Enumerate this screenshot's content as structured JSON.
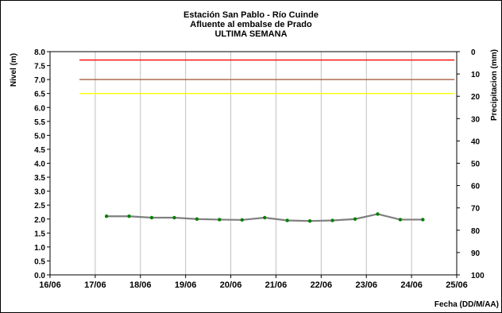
{
  "chart_data": {
    "type": "line",
    "title_lines": [
      "Estación San Pablo - Río Cuinde",
      "Afluente al embalse de Prado",
      "ULTIMA SEMANA"
    ],
    "xlabel": "Fecha (DD/M/AA)",
    "ylabel": "Nivel (m)",
    "y2label": "Precipitacion (mm)",
    "x_ticks": [
      "16/06",
      "17/06",
      "18/06",
      "19/06",
      "20/06",
      "21/06",
      "22/06",
      "23/06",
      "24/06",
      "25/06"
    ],
    "xlim_days": [
      16,
      25
    ],
    "ylim": [
      0.0,
      8.0
    ],
    "y_ticks": [
      "0.0",
      "0.5",
      "1.0",
      "1.5",
      "2.0",
      "2.5",
      "3.0",
      "3.5",
      "4.0",
      "4.5",
      "5.0",
      "5.5",
      "6.0",
      "6.5",
      "7.0",
      "7.5",
      "8.0"
    ],
    "y2lim": [
      0,
      100
    ],
    "y2_reversed": true,
    "y2_ticks": [
      "0",
      "10",
      "20",
      "30",
      "40",
      "50",
      "60",
      "70",
      "80",
      "90",
      "100"
    ],
    "grid": true,
    "thresholds": [
      {
        "value": 7.7,
        "color": "#ff0000"
      },
      {
        "value": 7.0,
        "color": "#a0522d"
      },
      {
        "value": 6.5,
        "color": "#ffff00"
      }
    ],
    "thresholds_x_range_days": [
      16.65,
      24.95
    ],
    "series": [
      {
        "line_color": "#808080",
        "marker_color": "#008000",
        "x_days": [
          17.25,
          17.75,
          18.25,
          18.75,
          19.25,
          19.75,
          20.25,
          20.75,
          21.25,
          21.75,
          22.25,
          22.75,
          23.25,
          23.75,
          24.25
        ],
        "values": [
          2.1,
          2.1,
          2.05,
          2.05,
          2.0,
          1.98,
          1.97,
          2.05,
          1.95,
          1.93,
          1.95,
          2.0,
          2.18,
          1.98,
          1.98
        ]
      }
    ]
  }
}
